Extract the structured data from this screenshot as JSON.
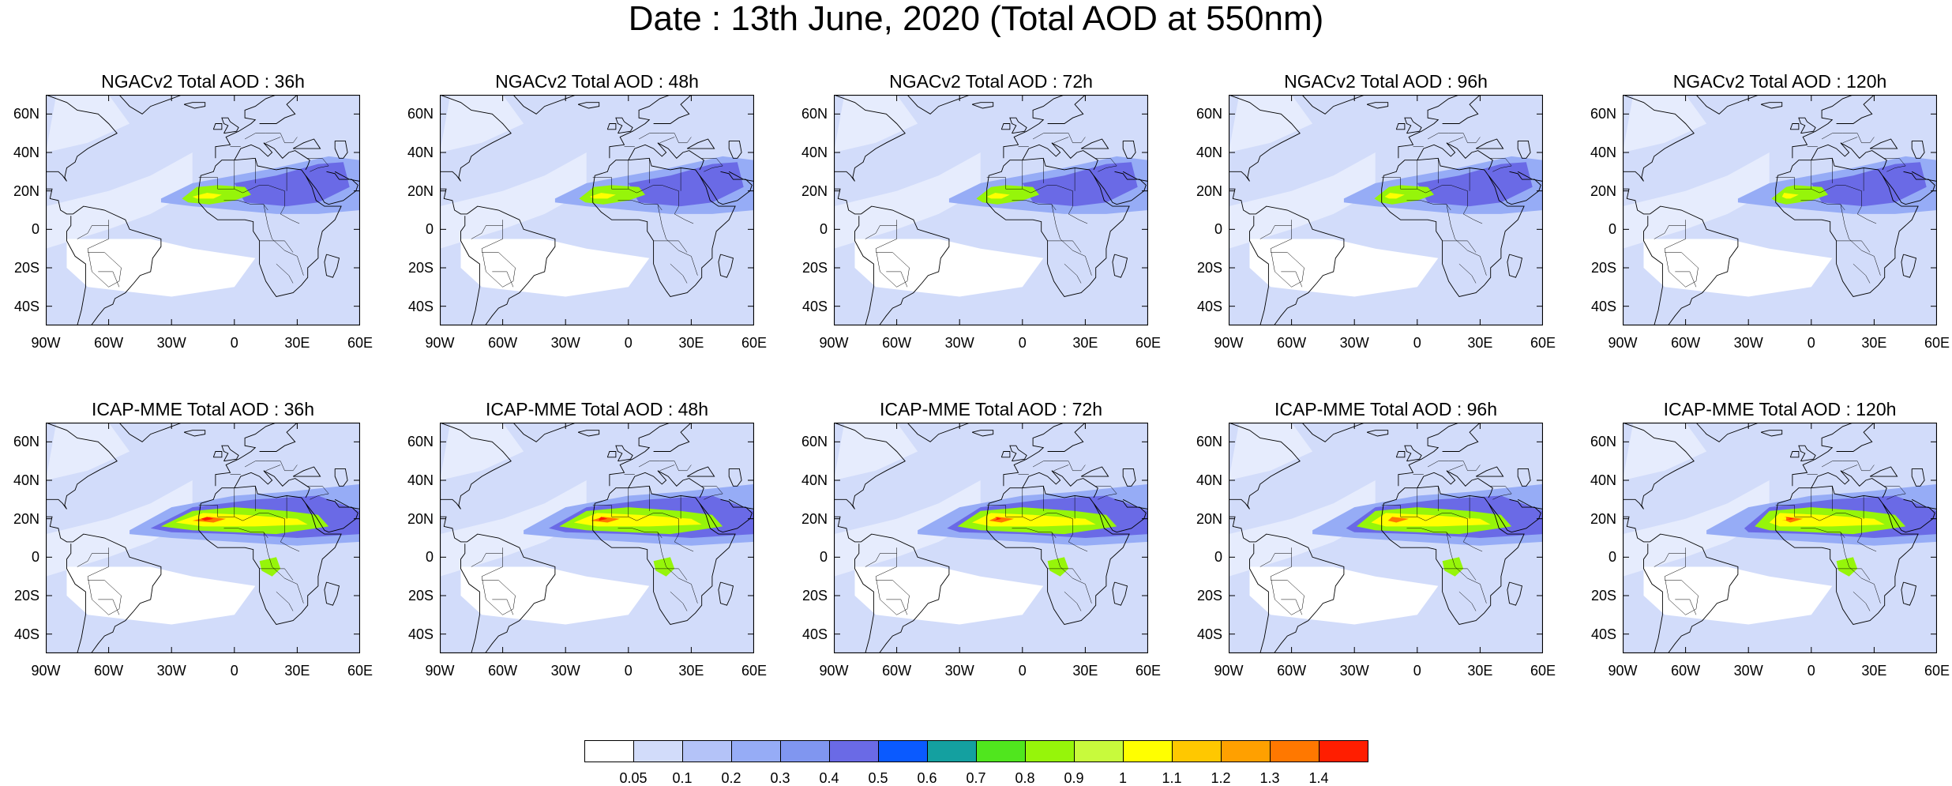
{
  "title": "Date : 13th June, 2020 (Total AOD at 550nm)",
  "lat_labels": [
    "60N",
    "40N",
    "20N",
    "0",
    "20S",
    "40S"
  ],
  "lon_labels": [
    "90W",
    "60W",
    "30W",
    "0",
    "30E",
    "60E"
  ],
  "panels": [
    {
      "title": "NGACv2 Total AOD : 36h",
      "model": "NGACv2",
      "lead": "36h"
    },
    {
      "title": "NGACv2 Total AOD : 48h",
      "model": "NGACv2",
      "lead": "48h"
    },
    {
      "title": "NGACv2 Total AOD : 72h",
      "model": "NGACv2",
      "lead": "72h"
    },
    {
      "title": "NGACv2 Total AOD : 96h",
      "model": "NGACv2",
      "lead": "96h"
    },
    {
      "title": "NGACv2 Total AOD : 120h",
      "model": "NGACv2",
      "lead": "120h"
    },
    {
      "title": "ICAP-MME Total AOD : 36h",
      "model": "ICAP-MME",
      "lead": "36h"
    },
    {
      "title": "ICAP-MME Total AOD : 48h",
      "model": "ICAP-MME",
      "lead": "48h"
    },
    {
      "title": "ICAP-MME Total AOD : 72h",
      "model": "ICAP-MME",
      "lead": "72h"
    },
    {
      "title": "ICAP-MME Total AOD : 96h",
      "model": "ICAP-MME",
      "lead": "96h"
    },
    {
      "title": "ICAP-MME Total AOD : 120h",
      "model": "ICAP-MME",
      "lead": "120h"
    }
  ],
  "colorbar": {
    "labels": [
      "0.05",
      "0.1",
      "0.2",
      "0.3",
      "0.4",
      "0.5",
      "0.6",
      "0.7",
      "0.8",
      "0.9",
      "1",
      "1.1",
      "1.2",
      "1.3",
      "1.4"
    ],
    "colors": [
      "#ffffff",
      "#d2dcfa",
      "#b4c3f8",
      "#96acf6",
      "#8096f0",
      "#6a6ae6",
      "#0a5aff",
      "#14a0a0",
      "#50e61e",
      "#96f50a",
      "#c8fa3c",
      "#ffff00",
      "#ffc800",
      "#ffa000",
      "#ff7800",
      "#ff1e00"
    ]
  },
  "map_colors": {
    "ocean_background": "#d2dcfa",
    "clean_white": "#ffffff",
    "coastline": "#000000"
  }
}
